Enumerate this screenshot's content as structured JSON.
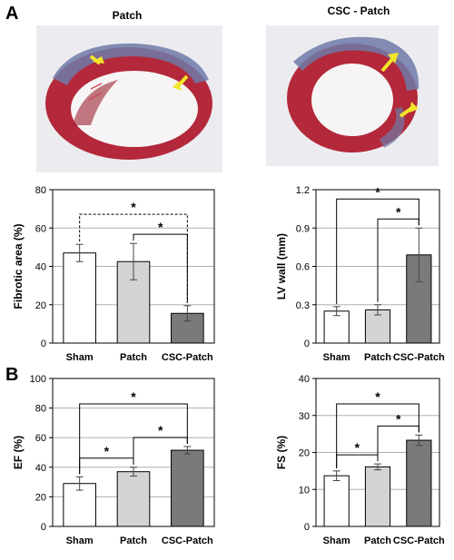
{
  "panels": {
    "a": "A",
    "b": "B"
  },
  "images": [
    {
      "title": "Patch"
    },
    {
      "title": "CSC - Patch"
    }
  ],
  "colors": {
    "sham": "#ffffff",
    "patch": "#d4d4d4",
    "csc_patch": "#7a7a7a",
    "grid": "#b0b0b0",
    "arrow": "#f2e52a",
    "tissue": "#b3283a",
    "fibrosis": "#6f7aa8"
  },
  "chart_data": [
    {
      "type": "bar",
      "categories": [
        "Sham",
        "Patch",
        "CSC-Patch"
      ],
      "values": [
        47,
        42.5,
        15.5
      ],
      "errors": [
        4.5,
        9.5,
        4
      ],
      "ylabel": "Fibrotic area (%)",
      "ylim": [
        0,
        80
      ],
      "yticks": [
        "0",
        "20",
        "40",
        "60",
        "80"
      ],
      "grid": true,
      "significance": [
        {
          "from": 0,
          "to": 2,
          "label": "*",
          "dashed": true
        },
        {
          "from": 1,
          "to": 2,
          "label": "*",
          "dashed": false
        }
      ]
    },
    {
      "type": "bar",
      "categories": [
        "Sham",
        "Patch",
        "CSC-Patch"
      ],
      "values": [
        0.25,
        0.26,
        0.69
      ],
      "errors": [
        0.035,
        0.04,
        0.21
      ],
      "ylabel": "LV wall (mm)",
      "ylim": [
        0,
        1.2
      ],
      "yticks": [
        "0",
        "0.3",
        "0.6",
        "0.9",
        "1.2"
      ],
      "grid": true,
      "significance": [
        {
          "from": 0,
          "to": 2,
          "label": "*",
          "dashed": false
        },
        {
          "from": 1,
          "to": 2,
          "label": "*",
          "dashed": false
        }
      ]
    },
    {
      "type": "bar",
      "categories": [
        "Sham",
        "Patch",
        "CSC-Patch"
      ],
      "values": [
        29,
        37,
        51.5
      ],
      "errors": [
        4.5,
        3,
        2.5
      ],
      "ylabel": "EF (%)",
      "ylim": [
        0,
        100
      ],
      "yticks": [
        "0",
        "20",
        "40",
        "60",
        "80",
        "100"
      ],
      "grid": true,
      "significance": [
        {
          "from": 0,
          "to": 2,
          "label": "*",
          "dashed": false
        },
        {
          "from": 0,
          "to": 1,
          "label": "*",
          "dashed": false
        },
        {
          "from": 1,
          "to": 2,
          "label": "*",
          "dashed": false
        }
      ]
    },
    {
      "type": "bar",
      "categories": [
        "Sham",
        "Patch",
        "CSC-Patch"
      ],
      "values": [
        13.7,
        16.1,
        23.3
      ],
      "errors": [
        1.3,
        0.8,
        1.4
      ],
      "ylabel": "FS (%)",
      "ylim": [
        0,
        40
      ],
      "yticks": [
        "0",
        "10",
        "20",
        "30",
        "40"
      ],
      "grid": true,
      "significance": [
        {
          "from": 0,
          "to": 2,
          "label": "*",
          "dashed": false
        },
        {
          "from": 0,
          "to": 1,
          "label": "*",
          "dashed": false
        },
        {
          "from": 1,
          "to": 2,
          "label": "*",
          "dashed": false
        }
      ]
    }
  ]
}
